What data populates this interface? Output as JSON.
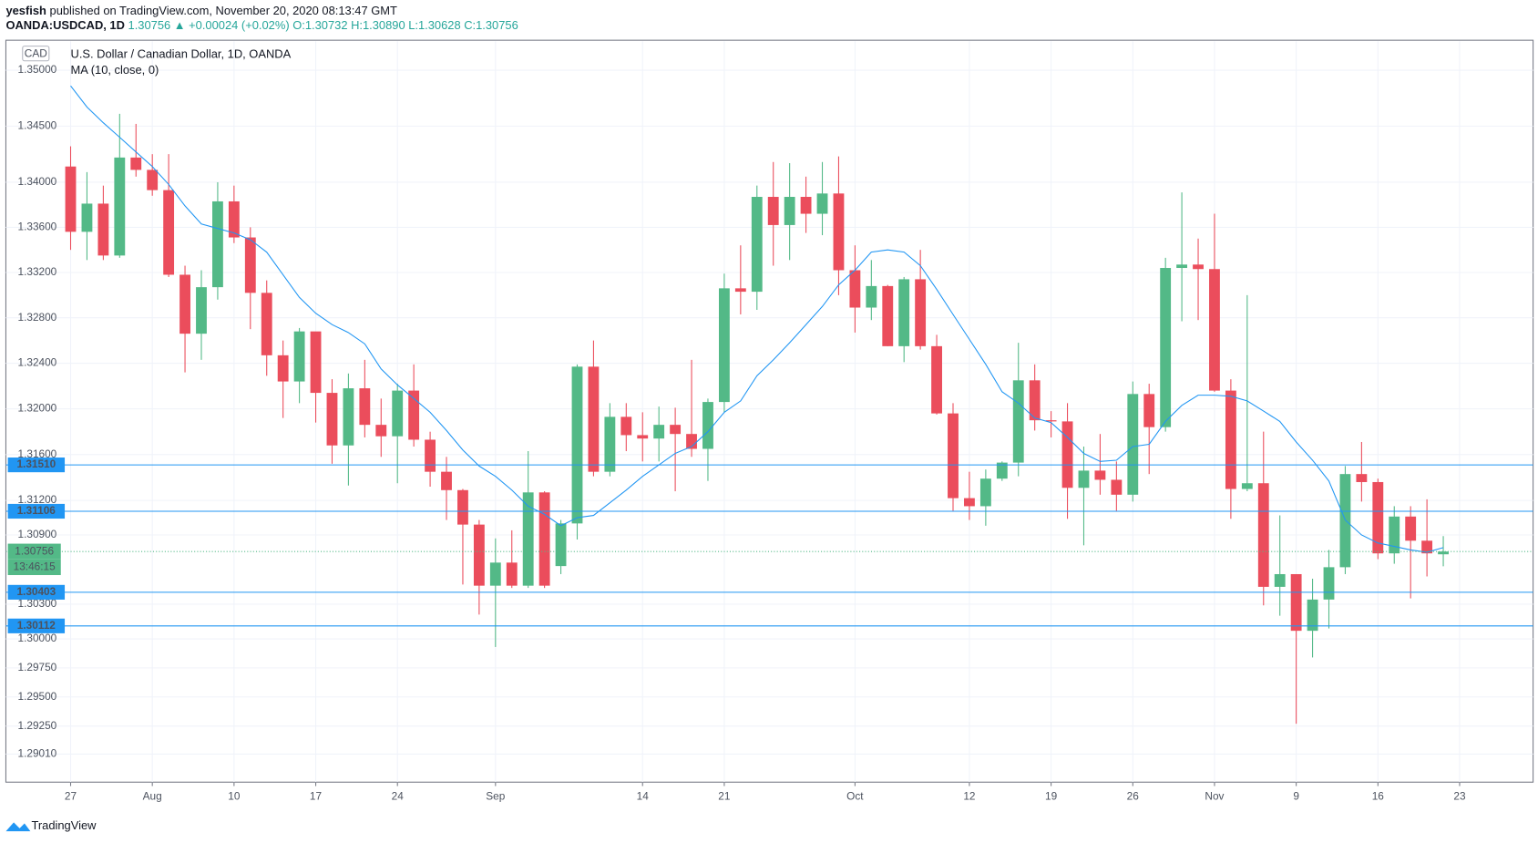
{
  "header": {
    "author": "yesfish",
    "published": "published on TradingView.com, November 20, 2020 08:13:47 GMT",
    "symbol": "OANDA:USDCAD, 1D",
    "price": "1.30756",
    "change": "▲ +0.00024 (+0.02%)",
    "ohlc": "O:1.30732 H:1.30890 L:1.30628 C:1.30756"
  },
  "footer": {
    "brand": "TradingView"
  },
  "chart_data": {
    "type": "candlestick",
    "title": "U.S. Dollar / Canadian Dollar, 1D, OANDA",
    "currency": "CAD",
    "categories": [
      "27",
      null,
      null,
      null,
      null,
      "Aug",
      null,
      null,
      null,
      null,
      "10",
      null,
      null,
      null,
      null,
      "17",
      null,
      null,
      null,
      null,
      "24",
      null,
      null,
      null,
      null,
      null,
      "Sep",
      null,
      null,
      null,
      null,
      null,
      null,
      null,
      null,
      "14",
      null,
      null,
      null,
      null,
      "21",
      null,
      null,
      null,
      null,
      null,
      null,
      null,
      "Oct",
      null,
      null,
      null,
      null,
      null,
      null,
      "12",
      null,
      null,
      null,
      null,
      "19",
      null,
      null,
      null,
      null,
      "26",
      null,
      null,
      null,
      null,
      "Nov",
      null,
      null,
      null,
      null,
      "9",
      null,
      null,
      null,
      null,
      "16",
      null,
      null,
      null,
      null
    ],
    "future_categories": [
      "23"
    ],
    "open": [
      1.3414,
      1.3356,
      1.3381,
      1.3335,
      1.3422,
      1.3411,
      1.3393,
      1.3318,
      1.3266,
      1.3307,
      1.3383,
      1.3351,
      1.3302,
      1.3247,
      1.3224,
      1.3268,
      1.3214,
      1.3168,
      1.3218,
      1.3186,
      1.3176,
      1.3216,
      1.3173,
      1.3145,
      1.3129,
      1.3099,
      1.3046,
      1.3066,
      1.3046,
      1.3127,
      1.3063,
      1.31,
      1.3237,
      1.3145,
      1.3193,
      1.3177,
      1.3174,
      1.3186,
      1.3178,
      1.3165,
      1.3206,
      1.3306,
      1.3303,
      1.3387,
      1.3362,
      1.3387,
      1.3372,
      1.339,
      1.3322,
      1.3289,
      1.3308,
      1.3255,
      1.3314,
      1.3255,
      1.3196,
      1.3122,
      1.3115,
      1.3139,
      1.3153,
      1.3225,
      1.319,
      1.3189,
      1.3131,
      1.3146,
      1.3138,
      1.3125,
      1.3213,
      1.3184,
      1.3324,
      1.3327,
      1.3323,
      1.3216,
      1.313,
      1.3135,
      1.3045,
      1.3056,
      1.3007,
      1.3034,
      1.3062,
      1.3143,
      1.3136,
      1.3074,
      1.3106,
      1.3085,
      1.30732
    ],
    "high": [
      1.3432,
      1.3409,
      1.3397,
      1.3461,
      1.3452,
      1.3425,
      1.3425,
      1.3326,
      1.3322,
      1.34,
      1.3397,
      1.336,
      1.3313,
      1.326,
      1.3271,
      1.3267,
      1.3226,
      1.3231,
      1.3243,
      1.3209,
      1.3222,
      1.3239,
      1.318,
      1.3158,
      1.313,
      1.3103,
      1.3087,
      1.3094,
      1.3163,
      1.3128,
      1.3103,
      1.3239,
      1.326,
      1.3205,
      1.3205,
      1.3197,
      1.3202,
      1.3201,
      1.3243,
      1.3209,
      1.3319,
      1.3344,
      1.3397,
      1.3418,
      1.3417,
      1.3405,
      1.3418,
      1.3423,
      1.3344,
      1.3331,
      1.3309,
      1.3316,
      1.334,
      1.3265,
      1.3205,
      1.3145,
      1.3147,
      1.3154,
      1.3258,
      1.3239,
      1.3198,
      1.3205,
      1.3167,
      1.3178,
      1.3154,
      1.3224,
      1.3222,
      1.3333,
      1.3391,
      1.335,
      1.3372,
      1.3226,
      1.33,
      1.318,
      1.3107,
      1.3056,
      1.3052,
      1.3077,
      1.315,
      1.3171,
      1.3139,
      1.3115,
      1.3115,
      1.3121,
      1.3089
    ],
    "low": [
      1.334,
      1.3331,
      1.3331,
      1.3333,
      1.3405,
      1.3388,
      1.3316,
      1.3232,
      1.3243,
      1.3296,
      1.3346,
      1.327,
      1.3229,
      1.3192,
      1.3205,
      1.3188,
      1.3152,
      1.3133,
      1.3175,
      1.3158,
      1.3135,
      1.3167,
      1.3132,
      1.3103,
      1.3047,
      1.3021,
      1.2993,
      1.3044,
      1.3044,
      1.3044,
      1.3056,
      1.3086,
      1.3141,
      1.3141,
      1.3163,
      1.3154,
      1.3154,
      1.3128,
      1.3158,
      1.3137,
      1.3197,
      1.3283,
      1.3287,
      1.3326,
      1.3331,
      1.3355,
      1.3353,
      1.33,
      1.3267,
      1.3278,
      1.3255,
      1.3241,
      1.3252,
      1.3195,
      1.3111,
      1.3103,
      1.3098,
      1.3137,
      1.3141,
      1.3181,
      1.3175,
      1.3104,
      1.3081,
      1.3125,
      1.3111,
      1.3119,
      1.3143,
      1.318,
      1.3277,
      1.3278,
      1.3215,
      1.3104,
      1.3128,
      1.3029,
      1.302,
      1.2927,
      1.2984,
      1.3009,
      1.3056,
      1.3119,
      1.3069,
      1.3065,
      1.3035,
      1.3054,
      1.30628
    ],
    "close": [
      1.3356,
      1.3381,
      1.3335,
      1.3422,
      1.3411,
      1.3393,
      1.3318,
      1.3266,
      1.3307,
      1.3383,
      1.3351,
      1.3302,
      1.3247,
      1.3224,
      1.3268,
      1.3214,
      1.3168,
      1.3218,
      1.3186,
      1.3176,
      1.3216,
      1.3173,
      1.3145,
      1.3129,
      1.3099,
      1.3046,
      1.3066,
      1.3046,
      1.3127,
      1.3046,
      1.31,
      1.3237,
      1.3145,
      1.3193,
      1.3177,
      1.3174,
      1.3186,
      1.3178,
      1.3165,
      1.3206,
      1.3306,
      1.3303,
      1.3387,
      1.3362,
      1.3387,
      1.3372,
      1.339,
      1.3322,
      1.3289,
      1.3308,
      1.3255,
      1.3314,
      1.3255,
      1.3196,
      1.3122,
      1.3115,
      1.3139,
      1.3153,
      1.3225,
      1.319,
      1.3189,
      1.3131,
      1.3146,
      1.3138,
      1.3125,
      1.3213,
      1.3184,
      1.3324,
      1.3327,
      1.3323,
      1.3216,
      1.313,
      1.3135,
      1.3045,
      1.3056,
      1.3007,
      1.3034,
      1.3062,
      1.3143,
      1.3136,
      1.3074,
      1.3106,
      1.3085,
      1.3074,
      1.30756
    ],
    "up_color": "#53b987",
    "down_color": "#eb4d5c",
    "ma": {
      "name": "MA (10, close, 0)",
      "color": "#2196f3",
      "values": [
        1.3486,
        1.3467,
        1.3453,
        1.344,
        1.3427,
        1.3414,
        1.3398,
        1.3379,
        1.3363,
        1.3359,
        1.3355,
        1.3349,
        1.3338,
        1.3318,
        1.3298,
        1.3284,
        1.3274,
        1.3267,
        1.3257,
        1.3235,
        1.3221,
        1.3209,
        1.3197,
        1.3181,
        1.3164,
        1.315,
        1.3141,
        1.3129,
        1.3115,
        1.3108,
        1.3098,
        1.3105,
        1.3107,
        1.3118,
        1.3129,
        1.3141,
        1.3151,
        1.3161,
        1.3167,
        1.318,
        1.3197,
        1.3207,
        1.3229,
        1.3243,
        1.3258,
        1.3274,
        1.329,
        1.3309,
        1.3322,
        1.3338,
        1.334,
        1.3338,
        1.3326,
        1.3305,
        1.3283,
        1.3261,
        1.3239,
        1.3215,
        1.3205,
        1.3192,
        1.3188,
        1.3175,
        1.3161,
        1.3154,
        1.3155,
        1.3167,
        1.3169,
        1.3189,
        1.3203,
        1.3212,
        1.3212,
        1.3211,
        1.3207,
        1.3198,
        1.3189,
        1.3171,
        1.3155,
        1.3137,
        1.3103,
        1.309,
        1.3083,
        1.308,
        1.3077,
        1.3075,
        1.3079
      ]
    },
    "ylim": [
      1.2877,
      1.3526
    ],
    "log_scale": true,
    "grid": true,
    "yticks": [
      {
        "value": 1.35,
        "label": "1.35000"
      },
      {
        "value": 1.345,
        "label": "1.34500"
      },
      {
        "value": 1.34,
        "label": "1.34000"
      },
      {
        "value": 1.336,
        "label": "1.33600"
      },
      {
        "value": 1.332,
        "label": "1.33200"
      },
      {
        "value": 1.328,
        "label": "1.32800"
      },
      {
        "value": 1.324,
        "label": "1.32400"
      },
      {
        "value": 1.32,
        "label": "1.32000"
      },
      {
        "value": 1.316,
        "label": "1.31600"
      },
      {
        "value": 1.312,
        "label": "1.31200"
      },
      {
        "value": 1.309,
        "label": "1.30900"
      },
      {
        "value": 1.303,
        "label": "1.30300"
      },
      {
        "value": 1.3,
        "label": "1.30000"
      },
      {
        "value": 1.2975,
        "label": "1.29750"
      },
      {
        "value": 1.295,
        "label": "1.29500"
      },
      {
        "value": 1.2925,
        "label": "1.29250"
      },
      {
        "value": 1.2901,
        "label": "1.29010"
      }
    ],
    "hlines": [
      {
        "value": 1.3151,
        "label": "1.31510"
      },
      {
        "value": 1.31106,
        "label": "1.31106"
      },
      {
        "value": 1.30403,
        "label": "1.30403"
      },
      {
        "value": 1.30112,
        "label": "1.30112"
      }
    ],
    "hline_color": "#2196f3",
    "last_price": {
      "value": 1.30756,
      "label": "1.30756"
    },
    "countdown": "13:46:15"
  }
}
